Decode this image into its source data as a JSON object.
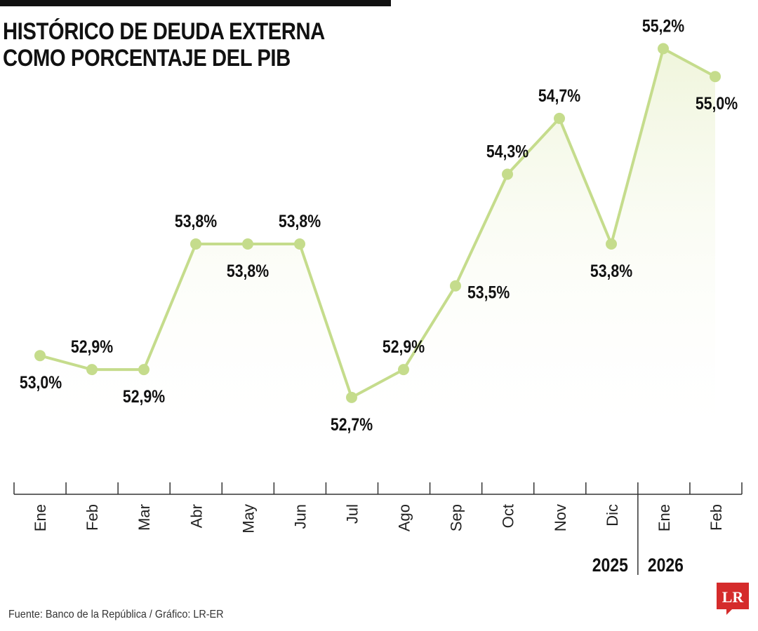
{
  "title_lines": [
    "HISTÓRICO DE DEUDA EXTERNA",
    "COMO PORCENTAJE DEL PIB"
  ],
  "source": "Fuente: Banco de la República / Gráfico: LR-ER",
  "logo_text": "LR",
  "colors": {
    "line": "#c5dc8c",
    "marker": "#c5dc8c",
    "area_top": "#eef4d8",
    "axis": "#333333",
    "logo": "#d52b2b",
    "text": "#111111"
  },
  "chart_data": {
    "type": "line",
    "title": "HISTÓRICO DE DEUDA EXTERNA COMO PORCENTAJE DEL PIB",
    "categories": [
      "Ene",
      "Feb",
      "Mar",
      "Abr",
      "May",
      "Jun",
      "Jul",
      "Ago",
      "Sep",
      "Oct",
      "Nov",
      "Dic",
      "Ene",
      "Feb"
    ],
    "values": [
      53.0,
      52.9,
      52.9,
      53.8,
      53.8,
      53.8,
      52.7,
      52.9,
      53.5,
      54.3,
      54.7,
      53.8,
      55.2,
      55.0
    ],
    "data_labels": [
      "53,0%",
      "52,9%",
      "52,9%",
      "53,8%",
      "53,8%",
      "53,8%",
      "52,7%",
      "52,9%",
      "53,5%",
      "54,3%",
      "54,7%",
      "53,8%",
      "55,2%",
      "55,0%"
    ],
    "label_placement": [
      "below",
      "above",
      "below",
      "above",
      "below",
      "above",
      "below",
      "above",
      "right",
      "above",
      "above",
      "below",
      "above",
      "below"
    ],
    "years": [
      {
        "label": "2025",
        "from": 0,
        "to": 11
      },
      {
        "label": "2026",
        "from": 12,
        "to": 13
      }
    ],
    "grid": false,
    "legend": "none",
    "area_fill": true,
    "xlabel": "",
    "ylabel": ""
  }
}
